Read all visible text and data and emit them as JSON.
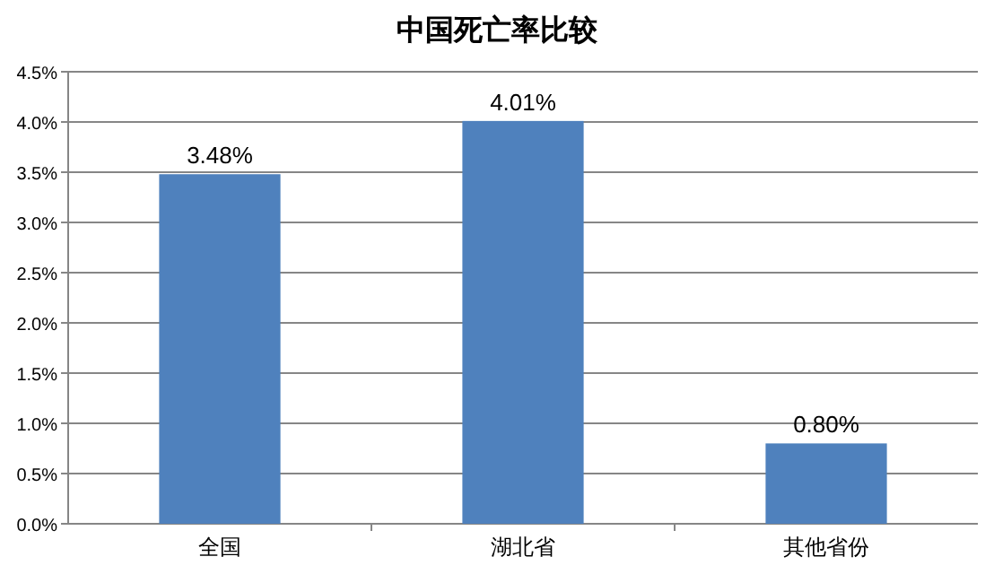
{
  "chart_data": {
    "type": "bar",
    "title": "中国死亡率比较",
    "categories": [
      "全国",
      "湖北省",
      "其他省份"
    ],
    "values": [
      3.48,
      4.01,
      0.8
    ],
    "value_labels": [
      "3.48%",
      "4.01%",
      "0.80%"
    ],
    "color": "#4f81bd",
    "ylim": [
      0,
      4.5
    ],
    "yticks": [
      {
        "value": 0,
        "label": "0.0%"
      },
      {
        "value": 0.5,
        "label": "0.5%"
      },
      {
        "value": 1,
        "label": "1.0%"
      },
      {
        "value": 1.5,
        "label": "1.5%"
      },
      {
        "value": 2,
        "label": "2.0%"
      },
      {
        "value": 2.5,
        "label": "2.5%"
      },
      {
        "value": 3,
        "label": "3.0%"
      },
      {
        "value": 3.5,
        "label": "3.5%"
      },
      {
        "value": 4,
        "label": "4.0%"
      },
      {
        "value": 4.5,
        "label": "4.5%"
      }
    ],
    "grid": "y"
  }
}
